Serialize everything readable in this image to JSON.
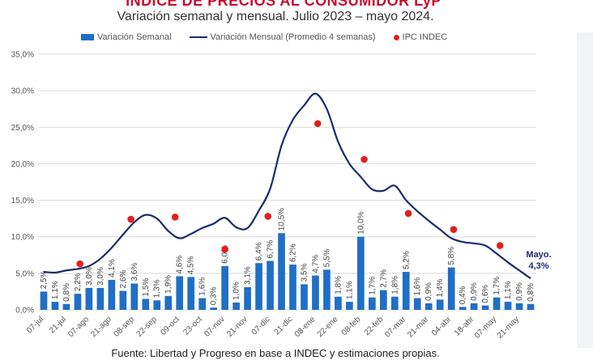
{
  "chart_data": {
    "type": "bar",
    "title": "ÍNDICE DE PRECIOS AL CONSUMIDOR LyP",
    "subtitle": "Variación semanal y mensual. Julio 2023 – mayo 2024.",
    "source": "Fuente: Libertad y Progreso en base a INDEC y estimaciones propias.",
    "ylim": [
      0,
      35
    ],
    "yticks": [
      "0,0%",
      "5,0%",
      "10,0%",
      "15,0%",
      "20,0%",
      "25,0%",
      "30,0%",
      "35,0%"
    ],
    "ytick_values": [
      0,
      5,
      10,
      15,
      20,
      25,
      30,
      35
    ],
    "grid": true,
    "legend": {
      "placement": "top",
      "entries": [
        "Variación Semanal",
        "Variación Mensual (Promedio 4 semanas)",
        "IPC INDEC"
      ]
    },
    "x_tick_labels": [
      {
        "index": 0,
        "label": "07-jul"
      },
      {
        "index": 2,
        "label": "21-jul"
      },
      {
        "index": 4,
        "label": "07-ago"
      },
      {
        "index": 6,
        "label": "21-ago"
      },
      {
        "index": 8,
        "label": "08-sep"
      },
      {
        "index": 10,
        "label": "22-sep"
      },
      {
        "index": 12,
        "label": "09-oct"
      },
      {
        "index": 14,
        "label": "23-oct"
      },
      {
        "index": 16,
        "label": "07-nov"
      },
      {
        "index": 18,
        "label": "21-nov"
      },
      {
        "index": 20,
        "label": "07-dic"
      },
      {
        "index": 22,
        "label": "21-dic"
      },
      {
        "index": 24,
        "label": "08-ene"
      },
      {
        "index": 26,
        "label": "22-ene"
      },
      {
        "index": 28,
        "label": "08-feb"
      },
      {
        "index": 30,
        "label": "22-feb"
      },
      {
        "index": 32,
        "label": "07-mar"
      },
      {
        "index": 34,
        "label": "21-mar"
      },
      {
        "index": 36,
        "label": "04-abr"
      },
      {
        "index": 38,
        "label": "18-abr"
      },
      {
        "index": 40,
        "label": "07-may"
      },
      {
        "index": 42,
        "label": "21-may"
      }
    ],
    "series": [
      {
        "name": "Variación Semanal",
        "type": "bar",
        "color": "#1f6fc5",
        "values": [
          2.5,
          1.1,
          0.8,
          2.2,
          3.0,
          3.0,
          4.1,
          2.6,
          3.6,
          1.5,
          1.3,
          1.9,
          4.6,
          4.5,
          1.6,
          0.3,
          6.0,
          1.0,
          3.1,
          6.4,
          6.7,
          10.5,
          6.2,
          3.5,
          4.7,
          5.5,
          1.8,
          1.1,
          10.0,
          1.7,
          2.7,
          1.8,
          5.2,
          1.6,
          0.9,
          1.4,
          5.8,
          0.4,
          0.9,
          0.6,
          1.7,
          1.1,
          0.9,
          0.8
        ],
        "labels": [
          "2,5%",
          "1,1%",
          "0,8%",
          "2,2%",
          "3,0%",
          "3,0%",
          "4,1%",
          "2,6%",
          "3,6%",
          "1,5%",
          "1,3%",
          "1,9%",
          "4,6%",
          "4,5%",
          "1,6%",
          "0,3%",
          "6,0%",
          "1,0%",
          "3,1%",
          "6,4%",
          "6,7%",
          "10,5%",
          "6,2%",
          "3,5%",
          "4,7%",
          "5,5%",
          "1,8%",
          "1,1%",
          "10,0%",
          "1,7%",
          "2,7%",
          "1,8%",
          "5,2%",
          "1,6%",
          "0,9%",
          "1,4%",
          "5,8%",
          "0,4%",
          "0,9%",
          "0,6%",
          "1,7%",
          "1,1%",
          "0,9%",
          "0,8%"
        ]
      },
      {
        "name": "Variación Mensual (Promedio 4 semanas)",
        "type": "line",
        "color": "#1a2c6e",
        "points": [
          [
            0,
            5.2
          ],
          [
            1,
            5.1
          ],
          [
            2,
            5.4
          ],
          [
            3,
            5.6
          ],
          [
            4,
            6.0
          ],
          [
            5,
            7.0
          ],
          [
            6,
            8.5
          ],
          [
            7,
            10.3
          ],
          [
            8,
            12.0
          ],
          [
            9,
            13.0
          ],
          [
            10,
            12.5
          ],
          [
            11,
            10.8
          ],
          [
            12,
            9.8
          ],
          [
            13,
            10.4
          ],
          [
            14,
            11.2
          ],
          [
            15,
            11.8
          ],
          [
            16,
            12.6
          ],
          [
            17,
            11.3
          ],
          [
            18,
            11.2
          ],
          [
            19,
            13.6
          ],
          [
            20,
            16.6
          ],
          [
            21,
            22.5
          ],
          [
            22,
            26.0
          ],
          [
            23,
            28.0
          ],
          [
            24,
            29.6
          ],
          [
            25,
            27.5
          ],
          [
            26,
            23.0
          ],
          [
            27,
            20.0
          ],
          [
            28,
            18.2
          ],
          [
            29,
            16.5
          ],
          [
            30,
            16.3
          ],
          [
            31,
            17.0
          ],
          [
            32,
            15.0
          ],
          [
            33,
            13.5
          ],
          [
            34,
            12.2
          ],
          [
            35,
            11.0
          ],
          [
            36,
            9.8
          ],
          [
            37,
            9.3
          ],
          [
            38,
            9.1
          ],
          [
            39,
            8.8
          ],
          [
            40,
            7.7
          ],
          [
            41,
            6.5
          ],
          [
            42,
            5.4
          ],
          [
            43,
            4.3
          ]
        ]
      },
      {
        "name": "IPC INDEC",
        "type": "scatter",
        "color": "#e02020",
        "points": [
          [
            3.2,
            6.3
          ],
          [
            7.7,
            12.4
          ],
          [
            11.6,
            12.7
          ],
          [
            16,
            8.3
          ],
          [
            19.8,
            12.8
          ],
          [
            24.2,
            25.5
          ],
          [
            28.3,
            20.6
          ],
          [
            32.2,
            13.2
          ],
          [
            36.2,
            11.0
          ],
          [
            40.3,
            8.8
          ]
        ]
      }
    ],
    "annotation": {
      "line1": "Mayo.",
      "line2": "4,3%"
    }
  }
}
